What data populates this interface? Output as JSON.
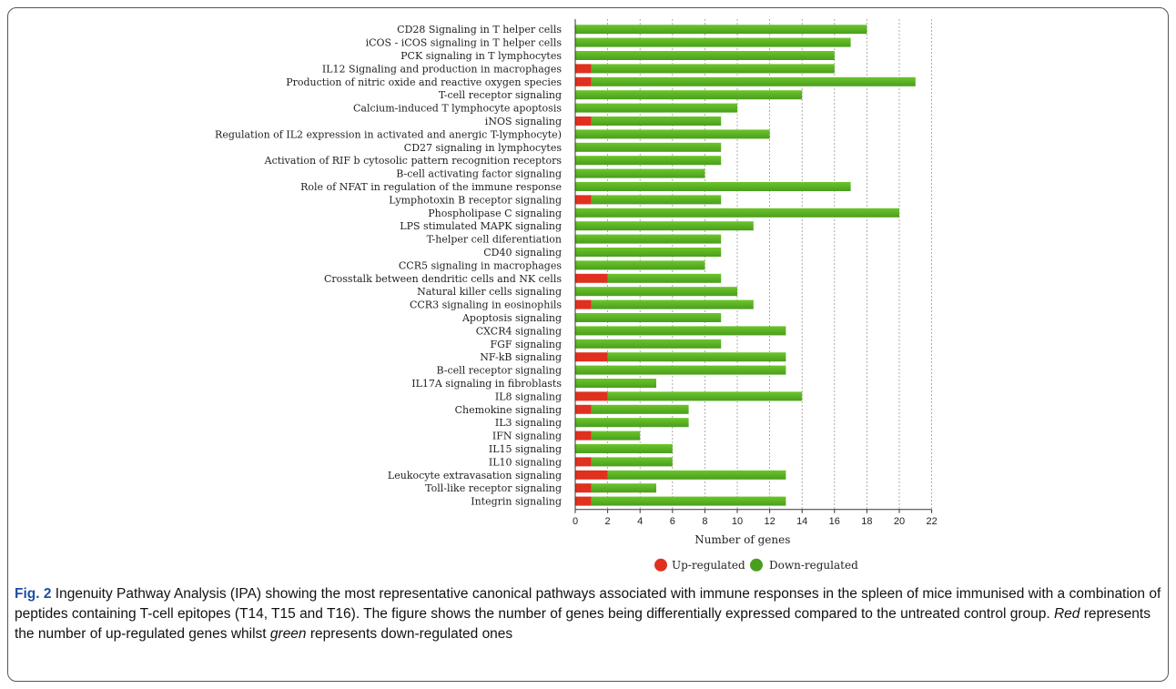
{
  "colors": {
    "up": "#e0301e",
    "down": "#4a9e1e",
    "down_light": "#6cc52a",
    "grid": "#999999"
  },
  "chart_data": {
    "type": "bar",
    "orientation": "horizontal",
    "stacked": true,
    "categories": [
      "CD28 Signaling in T helper cells",
      "iCOS - iCOS signaling in T helper cells",
      "PCK signaling in T lymphocytes",
      "IL12 Signaling and production in macrophages",
      "Production of nitric oxide and reactive oxygen species",
      "T-cell receptor signaling",
      "Calcium-induced T lymphocyte apoptosis",
      "iNOS signaling",
      "Regulation of IL2 expression in activated and anergic T-lymphocyte)",
      "CD27 signaling in lymphocytes",
      "Activation of RIF b cytosolic pattern recognition receptors",
      "B-cell activating factor signaling",
      "Role of NFAT in regulation of the immune response",
      "Lymphotoxin B receptor signaling",
      "Phospholipase C signaling",
      "LPS stimulated MAPK signaling",
      "T-helper cell diferentiation",
      "CD40 signaling",
      "CCR5 signaling in macrophages",
      "Crosstalk between dendritic cells and NK cells",
      "Natural killer cells signaling",
      "CCR3 signaling in eosinophils",
      "Apoptosis signaling",
      "CXCR4 signaling",
      "FGF signaling",
      "NF-kB signaling",
      "B-cell receptor signaling",
      "IL17A signaling in fibroblasts",
      "IL8 signaling",
      "Chemokine signaling",
      "IL3 signaling",
      "IFN signaling",
      "IL15 signaling",
      "IL10 signaling",
      "Leukocyte extravasation signaling",
      "Toll-like receptor signaling",
      "Integrin signaling"
    ],
    "series": [
      {
        "name": "Up-regulated",
        "values": [
          0,
          0,
          0,
          1,
          1,
          0,
          0,
          1,
          0,
          0,
          0,
          0,
          0,
          1,
          0,
          0,
          0,
          0,
          0,
          2,
          0,
          1,
          0,
          0,
          0,
          2,
          0,
          0,
          2,
          1,
          0,
          1,
          0,
          1,
          2,
          1,
          1
        ]
      },
      {
        "name": "Down-regulated",
        "values": [
          18,
          17,
          16,
          15,
          20,
          14,
          10,
          8,
          12,
          9,
          9,
          8,
          17,
          8,
          20,
          11,
          9,
          9,
          8,
          7,
          10,
          10,
          9,
          13,
          9,
          11,
          13,
          5,
          12,
          6,
          7,
          3,
          6,
          5,
          11,
          4,
          12
        ]
      }
    ],
    "xlabel": "Number of genes",
    "xlim": [
      0,
      22
    ],
    "xticks": [
      0,
      2,
      4,
      6,
      8,
      10,
      12,
      14,
      16,
      18,
      20,
      22
    ],
    "grid": "vertical dashed lines",
    "legend_position": "bottom-center"
  },
  "caption": {
    "label": "Fig. 2",
    "part1": " Ingenuity Pathway Analysis (IPA) showing the most representative canonical pathways associated with immune responses in the spleen of mice immunised with a combination of peptides containing T-cell epitopes (T14, T15 and T16). The figure shows the number of genes being differentially expressed compared to the untreated control group. ",
    "red_word": "Red",
    "part2": " represents the number of up-regulated genes whilst ",
    "green_word": "green",
    "part3": " represents down-regulated ones"
  }
}
